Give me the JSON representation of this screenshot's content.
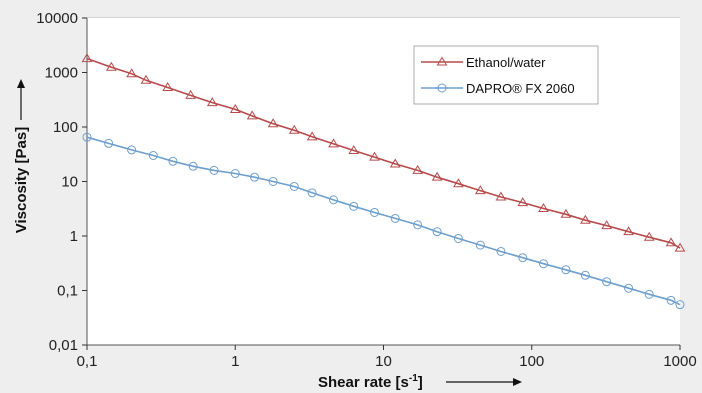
{
  "chart_data": {
    "type": "line",
    "x_scale": "log",
    "y_scale": "log",
    "xlim": [
      0.1,
      1000
    ],
    "ylim": [
      0.01,
      10000
    ],
    "x_ticks": [
      0.1,
      1,
      10,
      100,
      1000
    ],
    "x_tick_labels": [
      "0,1",
      "1",
      "10",
      "100",
      "1000"
    ],
    "y_ticks": [
      0.01,
      0.1,
      1,
      10,
      100,
      1000,
      10000
    ],
    "y_tick_labels": [
      "0,01",
      "0,1",
      "1",
      "10",
      "100",
      "1000",
      "10000"
    ],
    "xlabel": "Shear rate [s",
    "xlabel_superscript": "-1",
    "xlabel_suffix": "]",
    "ylabel": "Viscosity [Pas]",
    "grid": "horizontal",
    "legend_position": "top-right",
    "series": [
      {
        "name": "Ethanol/water",
        "color": "#b84a4a",
        "marker": "triangle",
        "x": [
          0.1,
          0.146,
          0.2,
          0.25,
          0.35,
          0.5,
          0.7,
          1,
          1.3,
          1.8,
          2.5,
          3.3,
          4.6,
          6.3,
          8.7,
          12,
          17,
          23,
          32,
          45,
          62,
          87,
          120,
          170,
          230,
          320,
          450,
          620,
          870,
          1000
        ],
        "y": [
          1800,
          1250,
          950,
          720,
          530,
          380,
          280,
          210,
          160,
          115,
          87,
          66,
          49,
          37,
          28,
          21,
          16,
          12,
          9.1,
          6.8,
          5.2,
          4.1,
          3.2,
          2.5,
          1.95,
          1.55,
          1.2,
          0.95,
          0.75,
          0.6
        ]
      },
      {
        "name": "DAPRO® FX 2060",
        "color": "#6d9fcf",
        "marker": "circle",
        "x": [
          0.1,
          0.14,
          0.2,
          0.28,
          0.38,
          0.52,
          0.72,
          1,
          1.35,
          1.8,
          2.5,
          3.3,
          4.6,
          6.3,
          8.7,
          12,
          17,
          23,
          32,
          45,
          62,
          87,
          120,
          170,
          230,
          320,
          450,
          620,
          870,
          1000
        ],
        "y": [
          65,
          50,
          38,
          30,
          23.5,
          19,
          16,
          14,
          12,
          10,
          8.1,
          6.2,
          4.6,
          3.5,
          2.7,
          2.1,
          1.6,
          1.2,
          0.9,
          0.68,
          0.52,
          0.4,
          0.31,
          0.24,
          0.19,
          0.145,
          0.11,
          0.085,
          0.066,
          0.055
        ]
      }
    ]
  }
}
